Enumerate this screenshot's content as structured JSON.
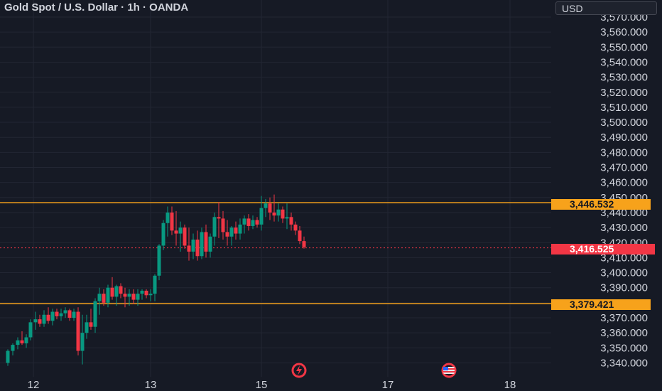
{
  "header": {
    "title": "Gold Spot / U.S. Dollar · 1h · OANDA",
    "currency": "USD"
  },
  "colors": {
    "background": "#161a25",
    "grid": "#222633",
    "up": "#089981",
    "down": "#f23645",
    "level_line": "#f7a21b",
    "axis_text": "#d1d4dc"
  },
  "price_axis": {
    "labels": [
      "3,570.000",
      "3,560.000",
      "3,550.000",
      "3,540.000",
      "3,530.000",
      "3,520.000",
      "3,510.000",
      "3,500.000",
      "3,490.000",
      "3,480.000",
      "3,470.000",
      "3,460.000",
      "3,450.000",
      "3,440.000",
      "3,430.000",
      "3,420.000",
      "3,410.000",
      "3,400.000",
      "3,390.000",
      "3,380.000",
      "3,370.000",
      "3,360.000",
      "3,350.000",
      "3,340.000"
    ]
  },
  "time_axis": {
    "labels": [
      "12",
      "13",
      "15",
      "17",
      "18"
    ]
  },
  "levels": {
    "resistance": "3,446.532",
    "support": "3,379.421",
    "current_price": "3,416.525"
  },
  "event_icons": [
    "lightning-event-icon",
    "us-flag-event-icon"
  ],
  "chart_data": {
    "type": "candlestick",
    "title": "Gold Spot / U.S. Dollar · 1h · OANDA",
    "ylim": [
      3337,
      3573
    ],
    "y_ticks": [
      3340,
      3350,
      3360,
      3370,
      3380,
      3390,
      3400,
      3410,
      3420,
      3430,
      3440,
      3450,
      3460,
      3470,
      3480,
      3490,
      3500,
      3510,
      3520,
      3530,
      3540,
      3550,
      3560,
      3570
    ],
    "x_ticks": [
      "12",
      "13",
      "15",
      "17",
      "18"
    ],
    "x_range": [
      0,
      123
    ],
    "x_tick_positions": [
      7,
      36,
      63,
      95,
      125
    ],
    "horizontal_levels": [
      3446.532,
      3379.421
    ],
    "last_price": 3416.525,
    "candles": [
      {
        "x": 0,
        "o": 3340,
        "h": 3349,
        "l": 3338,
        "c": 3348
      },
      {
        "x": 1,
        "o": 3348,
        "h": 3353,
        "l": 3345,
        "c": 3352
      },
      {
        "x": 2,
        "o": 3352,
        "h": 3357,
        "l": 3349,
        "c": 3355
      },
      {
        "x": 3,
        "o": 3355,
        "h": 3361,
        "l": 3352,
        "c": 3353
      },
      {
        "x": 4,
        "o": 3353,
        "h": 3359,
        "l": 3350,
        "c": 3357
      },
      {
        "x": 5,
        "o": 3357,
        "h": 3369,
        "l": 3355,
        "c": 3367
      },
      {
        "x": 6,
        "o": 3367,
        "h": 3374,
        "l": 3362,
        "c": 3369
      },
      {
        "x": 7,
        "o": 3369,
        "h": 3372,
        "l": 3364,
        "c": 3366
      },
      {
        "x": 8,
        "o": 3366,
        "h": 3375,
        "l": 3364,
        "c": 3372
      },
      {
        "x": 9,
        "o": 3372,
        "h": 3377,
        "l": 3366,
        "c": 3368
      },
      {
        "x": 10,
        "o": 3368,
        "h": 3376,
        "l": 3365,
        "c": 3374
      },
      {
        "x": 11,
        "o": 3374,
        "h": 3376,
        "l": 3369,
        "c": 3371
      },
      {
        "x": 12,
        "o": 3371,
        "h": 3376,
        "l": 3368,
        "c": 3373
      },
      {
        "x": 13,
        "o": 3373,
        "h": 3377,
        "l": 3370,
        "c": 3375
      },
      {
        "x": 14,
        "o": 3375,
        "h": 3376,
        "l": 3368,
        "c": 3370
      },
      {
        "x": 15,
        "o": 3370,
        "h": 3376,
        "l": 3368,
        "c": 3374
      },
      {
        "x": 16,
        "o": 3374,
        "h": 3377,
        "l": 3345,
        "c": 3348
      },
      {
        "x": 17,
        "o": 3348,
        "h": 3372,
        "l": 3339,
        "c": 3360
      },
      {
        "x": 18,
        "o": 3360,
        "h": 3372,
        "l": 3356,
        "c": 3367
      },
      {
        "x": 19,
        "o": 3367,
        "h": 3376,
        "l": 3362,
        "c": 3364
      },
      {
        "x": 20,
        "o": 3364,
        "h": 3383,
        "l": 3360,
        "c": 3381
      },
      {
        "x": 21,
        "o": 3381,
        "h": 3390,
        "l": 3372,
        "c": 3386
      },
      {
        "x": 22,
        "o": 3386,
        "h": 3389,
        "l": 3378,
        "c": 3380
      },
      {
        "x": 23,
        "o": 3380,
        "h": 3392,
        "l": 3377,
        "c": 3390
      },
      {
        "x": 24,
        "o": 3390,
        "h": 3397,
        "l": 3382,
        "c": 3384
      },
      {
        "x": 25,
        "o": 3384,
        "h": 3392,
        "l": 3378,
        "c": 3391
      },
      {
        "x": 26,
        "o": 3391,
        "h": 3393,
        "l": 3383,
        "c": 3386
      },
      {
        "x": 27,
        "o": 3386,
        "h": 3390,
        "l": 3377,
        "c": 3384
      },
      {
        "x": 28,
        "o": 3384,
        "h": 3389,
        "l": 3378,
        "c": 3386
      },
      {
        "x": 29,
        "o": 3386,
        "h": 3389,
        "l": 3379,
        "c": 3382
      },
      {
        "x": 30,
        "o": 3382,
        "h": 3389,
        "l": 3378,
        "c": 3386
      },
      {
        "x": 31,
        "o": 3386,
        "h": 3389,
        "l": 3382,
        "c": 3388
      },
      {
        "x": 32,
        "o": 3388,
        "h": 3389,
        "l": 3383,
        "c": 3385
      },
      {
        "x": 33,
        "o": 3385,
        "h": 3389,
        "l": 3381,
        "c": 3386
      },
      {
        "x": 34,
        "o": 3386,
        "h": 3399,
        "l": 3381,
        "c": 3398
      },
      {
        "x": 35,
        "o": 3398,
        "h": 3419,
        "l": 3395,
        "c": 3418
      },
      {
        "x": 36,
        "o": 3418,
        "h": 3435,
        "l": 3415,
        "c": 3433
      },
      {
        "x": 37,
        "o": 3433,
        "h": 3444,
        "l": 3424,
        "c": 3440
      },
      {
        "x": 38,
        "o": 3440,
        "h": 3444,
        "l": 3425,
        "c": 3428
      },
      {
        "x": 39,
        "o": 3428,
        "h": 3441,
        "l": 3418,
        "c": 3426
      },
      {
        "x": 40,
        "o": 3426,
        "h": 3434,
        "l": 3414,
        "c": 3430
      },
      {
        "x": 41,
        "o": 3430,
        "h": 3432,
        "l": 3416,
        "c": 3418
      },
      {
        "x": 42,
        "o": 3418,
        "h": 3430,
        "l": 3408,
        "c": 3414
      },
      {
        "x": 43,
        "o": 3414,
        "h": 3426,
        "l": 3409,
        "c": 3422
      },
      {
        "x": 44,
        "o": 3422,
        "h": 3428,
        "l": 3408,
        "c": 3411
      },
      {
        "x": 45,
        "o": 3411,
        "h": 3430,
        "l": 3409,
        "c": 3427
      },
      {
        "x": 46,
        "o": 3427,
        "h": 3432,
        "l": 3410,
        "c": 3414
      },
      {
        "x": 47,
        "o": 3414,
        "h": 3426,
        "l": 3410,
        "c": 3424
      },
      {
        "x": 48,
        "o": 3424,
        "h": 3440,
        "l": 3418,
        "c": 3437
      },
      {
        "x": 49,
        "o": 3437,
        "h": 3447,
        "l": 3423,
        "c": 3436
      },
      {
        "x": 50,
        "o": 3436,
        "h": 3441,
        "l": 3422,
        "c": 3427
      },
      {
        "x": 51,
        "o": 3427,
        "h": 3435,
        "l": 3418,
        "c": 3424
      },
      {
        "x": 52,
        "o": 3424,
        "h": 3431,
        "l": 3418,
        "c": 3430
      },
      {
        "x": 53,
        "o": 3430,
        "h": 3434,
        "l": 3422,
        "c": 3426
      },
      {
        "x": 54,
        "o": 3426,
        "h": 3436,
        "l": 3422,
        "c": 3432
      },
      {
        "x": 55,
        "o": 3432,
        "h": 3438,
        "l": 3426,
        "c": 3436
      },
      {
        "x": 56,
        "o": 3436,
        "h": 3439,
        "l": 3428,
        "c": 3431
      },
      {
        "x": 57,
        "o": 3431,
        "h": 3438,
        "l": 3429,
        "c": 3435
      },
      {
        "x": 58,
        "o": 3435,
        "h": 3437,
        "l": 3430,
        "c": 3432
      },
      {
        "x": 59,
        "o": 3432,
        "h": 3451,
        "l": 3428,
        "c": 3443
      },
      {
        "x": 60,
        "o": 3443,
        "h": 3449,
        "l": 3437,
        "c": 3446
      },
      {
        "x": 61,
        "o": 3446,
        "h": 3450,
        "l": 3435,
        "c": 3440
      },
      {
        "x": 62,
        "o": 3440,
        "h": 3452,
        "l": 3434,
        "c": 3438
      },
      {
        "x": 63,
        "o": 3438,
        "h": 3446,
        "l": 3434,
        "c": 3442
      },
      {
        "x": 64,
        "o": 3442,
        "h": 3444,
        "l": 3433,
        "c": 3436
      },
      {
        "x": 65,
        "o": 3436,
        "h": 3446,
        "l": 3429,
        "c": 3437
      },
      {
        "x": 66,
        "o": 3437,
        "h": 3440,
        "l": 3428,
        "c": 3432
      },
      {
        "x": 67,
        "o": 3432,
        "h": 3434,
        "l": 3425,
        "c": 3428
      },
      {
        "x": 68,
        "o": 3428,
        "h": 3431,
        "l": 3419,
        "c": 3421
      },
      {
        "x": 69,
        "o": 3421,
        "h": 3424,
        "l": 3416,
        "c": 3417
      }
    ],
    "candle_x_positions": [
      11,
      18,
      25,
      31,
      37,
      43,
      50,
      56,
      62,
      68,
      74,
      80,
      86,
      92,
      98,
      104,
      110,
      116,
      122,
      128,
      134,
      140,
      146,
      152,
      158,
      164,
      170,
      176,
      182,
      188,
      194,
      200,
      206,
      212,
      218,
      224,
      230,
      236,
      242,
      248,
      254,
      260,
      266,
      272,
      278,
      284,
      290,
      296,
      302,
      308,
      314,
      320,
      326,
      332,
      338,
      344,
      350,
      356,
      362,
      368,
      374,
      380,
      386,
      392,
      398,
      404,
      410,
      416,
      422,
      428
    ]
  }
}
